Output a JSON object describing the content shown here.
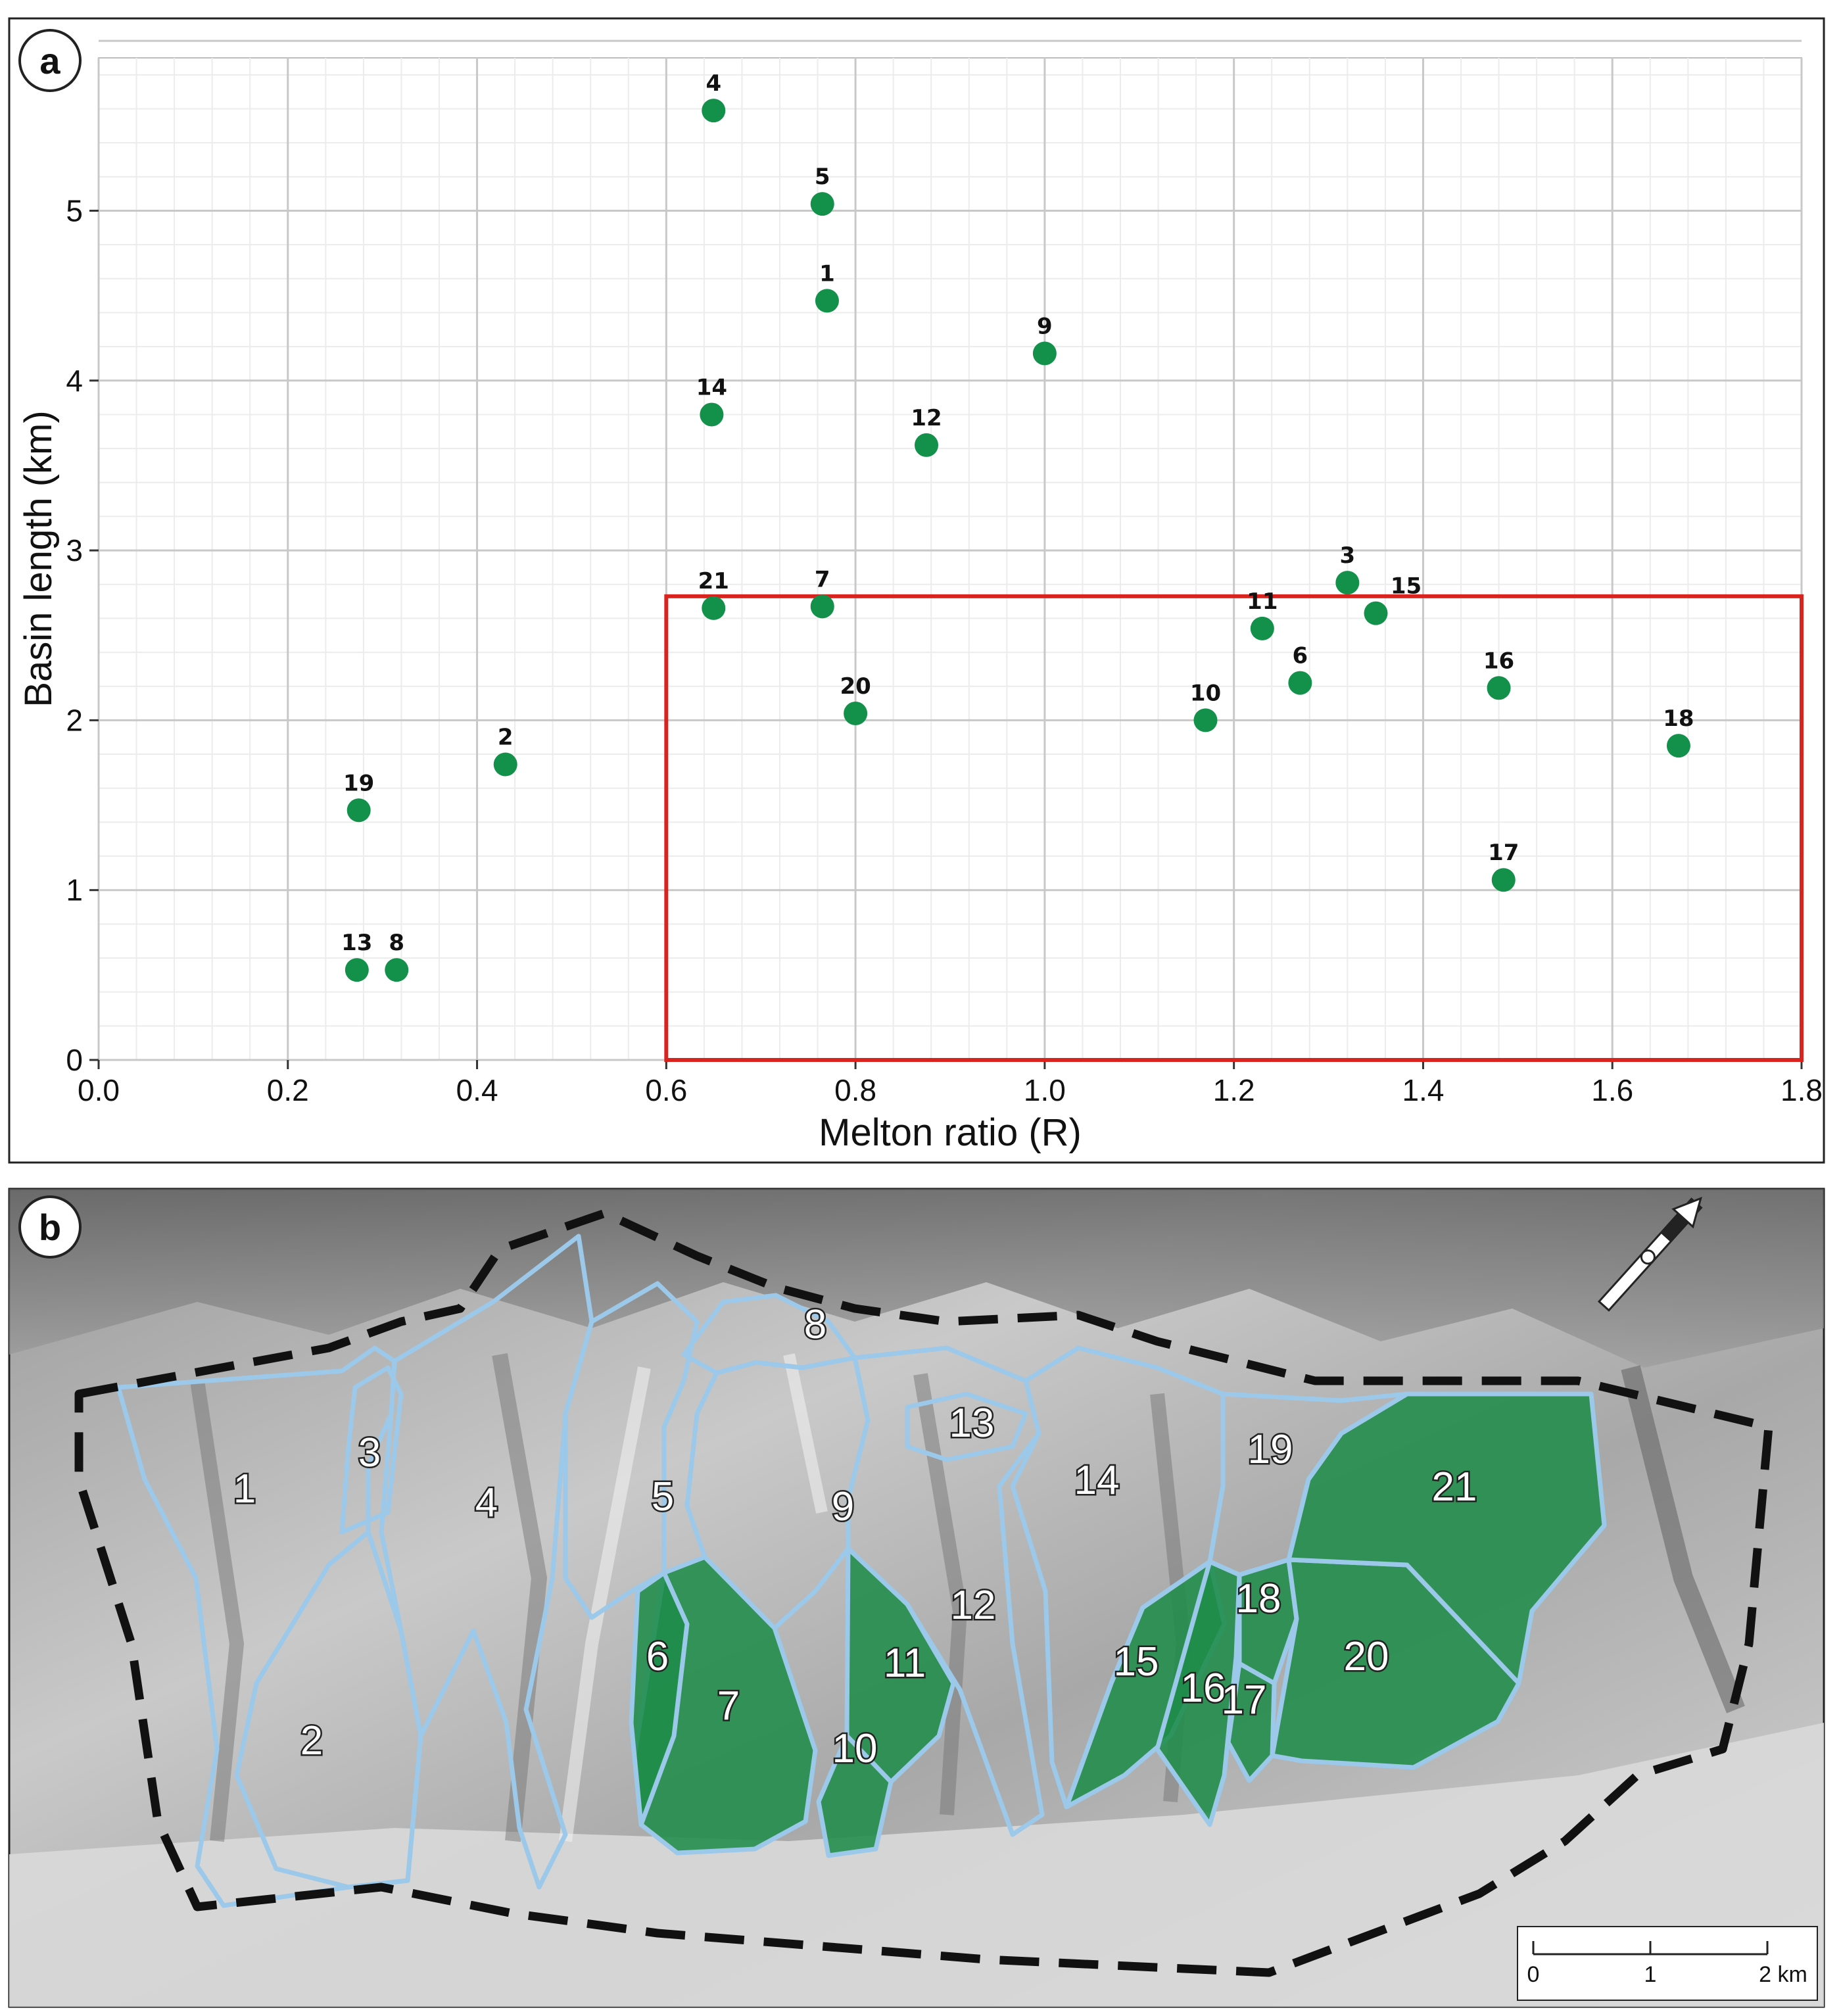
{
  "panel_a": {
    "letter": "a"
  },
  "panel_b": {
    "letter": "b",
    "scale_bar": {
      "ticks": [
        "0",
        "1",
        "2 km"
      ]
    },
    "basins": [
      {
        "id": "1",
        "highlighted": false
      },
      {
        "id": "2",
        "highlighted": false
      },
      {
        "id": "3",
        "highlighted": false
      },
      {
        "id": "4",
        "highlighted": false
      },
      {
        "id": "5",
        "highlighted": false
      },
      {
        "id": "6",
        "highlighted": true
      },
      {
        "id": "7",
        "highlighted": true
      },
      {
        "id": "8",
        "highlighted": false
      },
      {
        "id": "9",
        "highlighted": false
      },
      {
        "id": "10",
        "highlighted": true
      },
      {
        "id": "11",
        "highlighted": true
      },
      {
        "id": "12",
        "highlighted": false
      },
      {
        "id": "13",
        "highlighted": false
      },
      {
        "id": "14",
        "highlighted": false
      },
      {
        "id": "15",
        "highlighted": true
      },
      {
        "id": "16",
        "highlighted": true
      },
      {
        "id": "17",
        "highlighted": true
      },
      {
        "id": "18",
        "highlighted": true
      },
      {
        "id": "19",
        "highlighted": false
      },
      {
        "id": "20",
        "highlighted": true
      },
      {
        "id": "21",
        "highlighted": true
      }
    ],
    "colors": {
      "highlight_fill": "#1f8c4a",
      "basin_outline": "#9cc8ea",
      "boundary": "#111111"
    }
  },
  "chart_data": {
    "type": "scatter",
    "title": "",
    "xlabel": "Melton ratio (R)",
    "ylabel": "Basin length (km)",
    "xlim": [
      0.0,
      1.8
    ],
    "ylim": [
      0,
      5.9
    ],
    "xticks": [
      "0.0",
      "0.2",
      "0.4",
      "0.6",
      "0.8",
      "1.0",
      "1.2",
      "1.4",
      "1.6",
      "1.8"
    ],
    "yticks": [
      "0",
      "1",
      "2",
      "3",
      "4",
      "5"
    ],
    "grid": true,
    "marker_color": "#13914a",
    "highlight_box": {
      "x": [
        0.6,
        1.8
      ],
      "y": [
        0,
        2.73
      ],
      "color": "#d9231f"
    },
    "points": [
      {
        "label": "1",
        "x": 0.77,
        "y": 4.47
      },
      {
        "label": "2",
        "x": 0.43,
        "y": 1.74
      },
      {
        "label": "3",
        "x": 1.32,
        "y": 2.81
      },
      {
        "label": "4",
        "x": 0.65,
        "y": 5.59
      },
      {
        "label": "5",
        "x": 0.765,
        "y": 5.04
      },
      {
        "label": "6",
        "x": 1.27,
        "y": 2.22
      },
      {
        "label": "7",
        "x": 0.765,
        "y": 2.67
      },
      {
        "label": "8",
        "x": 0.315,
        "y": 0.53
      },
      {
        "label": "9",
        "x": 1.0,
        "y": 4.16
      },
      {
        "label": "10",
        "x": 1.17,
        "y": 2.0
      },
      {
        "label": "11",
        "x": 1.23,
        "y": 2.54
      },
      {
        "label": "12",
        "x": 0.875,
        "y": 3.62
      },
      {
        "label": "13",
        "x": 0.273,
        "y": 0.53
      },
      {
        "label": "14",
        "x": 0.648,
        "y": 3.8
      },
      {
        "label": "15",
        "x": 1.35,
        "y": 2.63
      },
      {
        "label": "16",
        "x": 1.48,
        "y": 2.19
      },
      {
        "label": "17",
        "x": 1.485,
        "y": 1.06
      },
      {
        "label": "18",
        "x": 1.67,
        "y": 1.85
      },
      {
        "label": "19",
        "x": 0.275,
        "y": 1.47
      },
      {
        "label": "20",
        "x": 0.8,
        "y": 2.04
      },
      {
        "label": "21",
        "x": 0.65,
        "y": 2.66
      }
    ]
  }
}
